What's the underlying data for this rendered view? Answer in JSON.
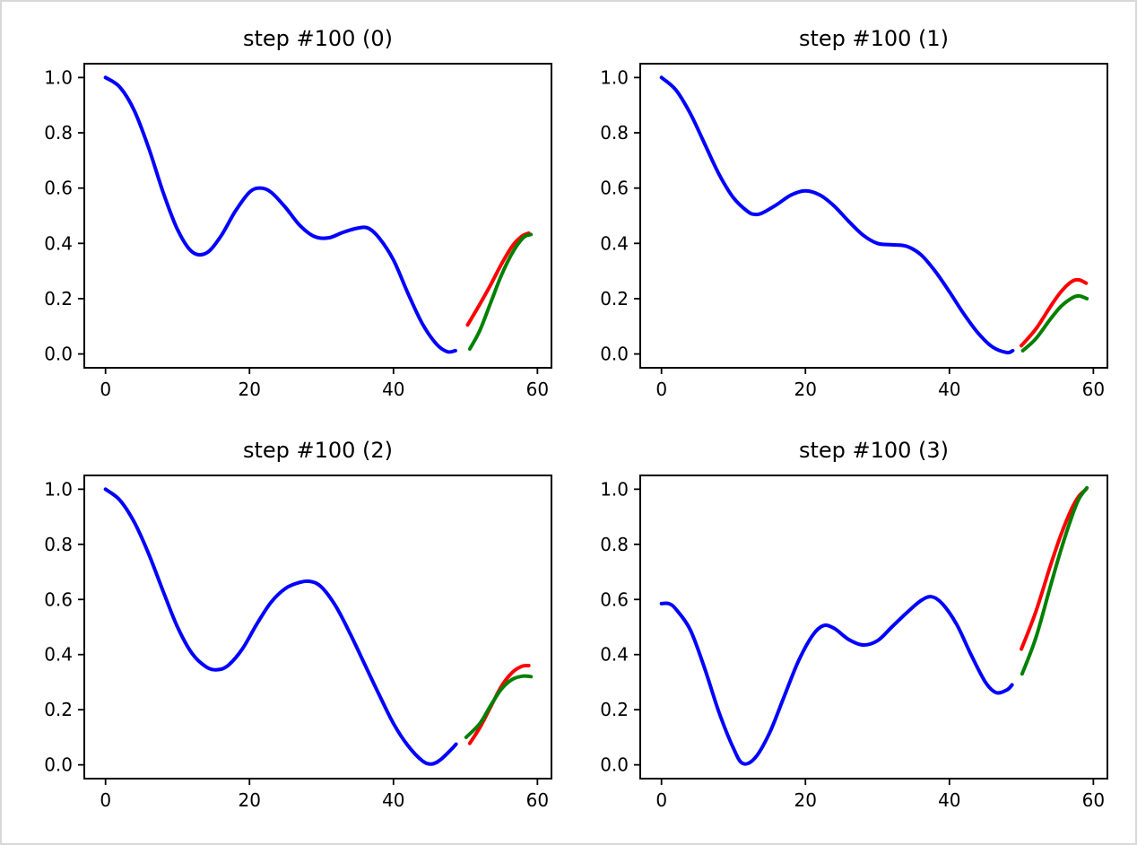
{
  "figure": {
    "background": "#ffffff",
    "border_color": "#d8d8d8",
    "text_color": "#000000",
    "spine_color": "#000000"
  },
  "chart_data": [
    {
      "type": "line",
      "title": "step #100 (0)",
      "xlim": [
        -2.95,
        61.95
      ],
      "ylim": [
        -0.05,
        1.05
      ],
      "grid": false,
      "legend": "none",
      "xticks": {
        "values": [
          0,
          20,
          40,
          60
        ],
        "labels": [
          "0",
          "20",
          "40",
          "60"
        ]
      },
      "yticks": {
        "values": [
          0.0,
          0.2,
          0.4,
          0.6,
          0.8,
          1.0
        ],
        "labels": [
          "0.0",
          "0.2",
          "0.4",
          "0.6",
          "0.8",
          "1.0"
        ]
      },
      "series": [
        {
          "name": "blue",
          "color": "#0000ff",
          "x": [
            0,
            2,
            4,
            6,
            8,
            10,
            12,
            14,
            16,
            18,
            20,
            21.5,
            23,
            25,
            27,
            29,
            31,
            33,
            35,
            36.5,
            38,
            40,
            42,
            44,
            46,
            47.5,
            48.6
          ],
          "y": [
            1.0,
            0.965,
            0.88,
            0.745,
            0.585,
            0.45,
            0.37,
            0.365,
            0.425,
            0.515,
            0.585,
            0.6,
            0.585,
            0.53,
            0.465,
            0.425,
            0.42,
            0.44,
            0.455,
            0.455,
            0.42,
            0.34,
            0.22,
            0.11,
            0.035,
            0.008,
            0.012
          ]
        },
        {
          "name": "red",
          "color": "#ff0000",
          "x": [
            50.3,
            52,
            53.5,
            55,
            56.5,
            57.8,
            58.8
          ],
          "y": [
            0.105,
            0.18,
            0.25,
            0.325,
            0.39,
            0.425,
            0.437
          ]
        },
        {
          "name": "green",
          "color": "#008000",
          "x": [
            50.6,
            52,
            53.5,
            55,
            56.5,
            58,
            59.1
          ],
          "y": [
            0.018,
            0.085,
            0.185,
            0.285,
            0.365,
            0.42,
            0.432
          ]
        }
      ]
    },
    {
      "type": "line",
      "title": "step #100 (1)",
      "xlim": [
        -2.95,
        61.95
      ],
      "ylim": [
        -0.05,
        1.05
      ],
      "grid": false,
      "legend": "none",
      "xticks": {
        "values": [
          0,
          20,
          40,
          60
        ],
        "labels": [
          "0",
          "20",
          "40",
          "60"
        ]
      },
      "yticks": {
        "values": [
          0.0,
          0.2,
          0.4,
          0.6,
          0.8,
          1.0
        ],
        "labels": [
          "0.0",
          "0.2",
          "0.4",
          "0.6",
          "0.8",
          "1.0"
        ]
      },
      "series": [
        {
          "name": "blue",
          "color": "#0000ff",
          "x": [
            0,
            2,
            4,
            6,
            8,
            10,
            12,
            13,
            14,
            16,
            18,
            20,
            22,
            24,
            26,
            28,
            30,
            32,
            34,
            36,
            38,
            40,
            42,
            44,
            46,
            48,
            48.8
          ],
          "y": [
            1.0,
            0.955,
            0.87,
            0.76,
            0.65,
            0.565,
            0.515,
            0.505,
            0.51,
            0.54,
            0.575,
            0.59,
            0.575,
            0.535,
            0.48,
            0.43,
            0.4,
            0.395,
            0.39,
            0.36,
            0.3,
            0.225,
            0.145,
            0.075,
            0.025,
            0.005,
            0.012
          ]
        },
        {
          "name": "red",
          "color": "#ff0000",
          "x": [
            50,
            52,
            54,
            55.5,
            57,
            58,
            59
          ],
          "y": [
            0.03,
            0.09,
            0.17,
            0.225,
            0.262,
            0.268,
            0.256
          ]
        },
        {
          "name": "green",
          "color": "#008000",
          "x": [
            50.2,
            52,
            54,
            55.5,
            57,
            58,
            59.1
          ],
          "y": [
            0.012,
            0.055,
            0.125,
            0.172,
            0.202,
            0.21,
            0.2
          ]
        }
      ]
    },
    {
      "type": "line",
      "title": "step #100 (2)",
      "xlim": [
        -2.95,
        61.95
      ],
      "ylim": [
        -0.05,
        1.05
      ],
      "grid": false,
      "legend": "none",
      "xticks": {
        "values": [
          0,
          20,
          40,
          60
        ],
        "labels": [
          "0",
          "20",
          "40",
          "60"
        ]
      },
      "yticks": {
        "values": [
          0.0,
          0.2,
          0.4,
          0.6,
          0.8,
          1.0
        ],
        "labels": [
          "0.0",
          "0.2",
          "0.4",
          "0.6",
          "0.8",
          "1.0"
        ]
      },
      "series": [
        {
          "name": "blue",
          "color": "#0000ff",
          "x": [
            0,
            2,
            4,
            6,
            8,
            10,
            12,
            14,
            15.5,
            17,
            19,
            21,
            23,
            25,
            27,
            28.5,
            30,
            32,
            34,
            36,
            38,
            40,
            42,
            44,
            45.3,
            46.5,
            48,
            48.7
          ],
          "y": [
            1.0,
            0.96,
            0.88,
            0.765,
            0.63,
            0.5,
            0.405,
            0.355,
            0.345,
            0.36,
            0.42,
            0.51,
            0.59,
            0.64,
            0.662,
            0.665,
            0.645,
            0.575,
            0.475,
            0.365,
            0.255,
            0.15,
            0.07,
            0.015,
            0.003,
            0.018,
            0.055,
            0.075
          ]
        },
        {
          "name": "red",
          "color": "#ff0000",
          "x": [
            50.6,
            52,
            53.5,
            55,
            56.5,
            57.8,
            58.8
          ],
          "y": [
            0.078,
            0.135,
            0.21,
            0.285,
            0.335,
            0.357,
            0.36
          ]
        },
        {
          "name": "green",
          "color": "#008000",
          "x": [
            50.1,
            52,
            53.5,
            55,
            56.5,
            58,
            59.1
          ],
          "y": [
            0.1,
            0.15,
            0.215,
            0.275,
            0.31,
            0.322,
            0.32
          ]
        }
      ]
    },
    {
      "type": "line",
      "title": "step #100 (3)",
      "xlim": [
        -2.95,
        61.95
      ],
      "ylim": [
        -0.05,
        1.05
      ],
      "grid": false,
      "legend": "none",
      "xticks": {
        "values": [
          0,
          20,
          40,
          60
        ],
        "labels": [
          "0",
          "20",
          "40",
          "60"
        ]
      },
      "yticks": {
        "values": [
          0.0,
          0.2,
          0.4,
          0.6,
          0.8,
          1.0
        ],
        "labels": [
          "0.0",
          "0.2",
          "0.4",
          "0.6",
          "0.8",
          "1.0"
        ]
      },
      "series": [
        {
          "name": "blue",
          "color": "#0000ff",
          "x": [
            0,
            1,
            2,
            4,
            6,
            8,
            10,
            11.3,
            13,
            15,
            17,
            19,
            21,
            22.5,
            24,
            26,
            28,
            30,
            32,
            34,
            36,
            37.5,
            39,
            41,
            43,
            45,
            46.5,
            48,
            48.7
          ],
          "y": [
            0.585,
            0.585,
            0.565,
            0.49,
            0.35,
            0.19,
            0.06,
            0.005,
            0.025,
            0.115,
            0.245,
            0.375,
            0.47,
            0.505,
            0.495,
            0.455,
            0.435,
            0.45,
            0.5,
            0.55,
            0.595,
            0.61,
            0.585,
            0.51,
            0.4,
            0.3,
            0.262,
            0.272,
            0.29
          ]
        },
        {
          "name": "red",
          "color": "#ff0000",
          "x": [
            50,
            52,
            54,
            55.5,
            57,
            58,
            59
          ],
          "y": [
            0.42,
            0.555,
            0.72,
            0.835,
            0.93,
            0.975,
            1.0
          ]
        },
        {
          "name": "green",
          "color": "#008000",
          "x": [
            50.1,
            52,
            54,
            55.5,
            57,
            58,
            59.1
          ],
          "y": [
            0.33,
            0.46,
            0.645,
            0.78,
            0.9,
            0.965,
            1.005
          ]
        }
      ]
    }
  ]
}
